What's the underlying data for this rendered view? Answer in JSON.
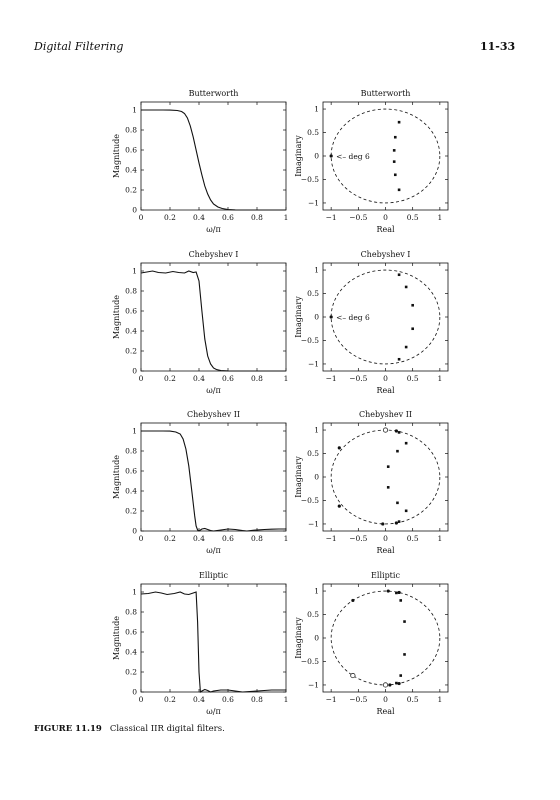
{
  "header": {
    "running_head": "Digital Filtering",
    "page_number": "11-33"
  },
  "caption": {
    "label": "FIGURE 11.19",
    "text": "Classical IIR digital filters."
  },
  "chart_data": [
    {
      "type": "line",
      "title": "Butterworth",
      "xlabel": "ω/π",
      "ylabel": "Magnitude",
      "xlim": [
        0,
        1
      ],
      "ylim": [
        0,
        1.08
      ],
      "xticks": [
        "0",
        "0.2",
        "0.4",
        "0.6",
        "0.8",
        "1"
      ],
      "yticks": [
        "0",
        "0.2",
        "0.4",
        "0.6",
        "0.8",
        "1"
      ],
      "x": [
        0,
        0.05,
        0.1,
        0.15,
        0.2,
        0.25,
        0.28,
        0.3,
        0.32,
        0.34,
        0.36,
        0.38,
        0.4,
        0.42,
        0.44,
        0.46,
        0.48,
        0.5,
        0.53,
        0.56,
        0.6,
        0.65,
        0.7,
        0.8,
        0.9,
        1
      ],
      "y": [
        1,
        1,
        1,
        1,
        0.999,
        0.995,
        0.985,
        0.965,
        0.92,
        0.84,
        0.73,
        0.6,
        0.47,
        0.35,
        0.24,
        0.16,
        0.1,
        0.06,
        0.03,
        0.015,
        0.005,
        0.001,
        0,
        0,
        0,
        0
      ]
    },
    {
      "type": "scatter",
      "title": "Butterworth",
      "xlabel": "Real",
      "ylabel": "Imaginary",
      "xlim": [
        -1.15,
        1.15
      ],
      "ylim": [
        -1.15,
        1.15
      ],
      "xticks": [
        "−1",
        "−0.5",
        "0",
        "0.5",
        "1"
      ],
      "yticks": [
        "−1",
        "−0.5",
        "0",
        "0.5",
        "1"
      ],
      "unit_circle": true,
      "poles": [
        [
          0.25,
          0.72
        ],
        [
          0.18,
          0.4
        ],
        [
          0.16,
          0.12
        ],
        [
          0.16,
          -0.12
        ],
        [
          0.18,
          -0.4
        ],
        [
          0.25,
          -0.72
        ]
      ],
      "zeros": [
        [
          -1,
          0
        ]
      ],
      "annotation": {
        "text": "<– deg 6",
        "x": -1,
        "y": 0
      }
    },
    {
      "type": "line",
      "title": "Chebyshev I",
      "xlabel": "ω/π",
      "ylabel": "Magnitude",
      "xlim": [
        0,
        1
      ],
      "ylim": [
        0,
        1.08
      ],
      "xticks": [
        "0",
        "0.2",
        "0.4",
        "0.6",
        "0.8",
        "1"
      ],
      "yticks": [
        "0",
        "0.2",
        "0.4",
        "0.6",
        "0.8",
        "1"
      ],
      "x": [
        0,
        0.04,
        0.08,
        0.12,
        0.17,
        0.22,
        0.26,
        0.3,
        0.33,
        0.36,
        0.38,
        0.4,
        0.42,
        0.44,
        0.46,
        0.48,
        0.5,
        0.52,
        0.55,
        0.6,
        0.7,
        0.8,
        0.9,
        1
      ],
      "y": [
        0.98,
        0.99,
        1,
        0.985,
        0.98,
        0.995,
        0.985,
        0.98,
        1,
        0.985,
        0.99,
        0.9,
        0.6,
        0.32,
        0.15,
        0.07,
        0.03,
        0.015,
        0.005,
        0.001,
        0,
        0,
        0,
        0
      ]
    },
    {
      "type": "scatter",
      "title": "Chebyshev I",
      "xlabel": "Real",
      "ylabel": "Imaginary",
      "xlim": [
        -1.15,
        1.15
      ],
      "ylim": [
        -1.15,
        1.15
      ],
      "xticks": [
        "−1",
        "−0.5",
        "0",
        "0.5",
        "1"
      ],
      "yticks": [
        "−1",
        "−0.5",
        "0",
        "0.5",
        "1"
      ],
      "unit_circle": true,
      "poles": [
        [
          0.25,
          0.9
        ],
        [
          0.38,
          0.64
        ],
        [
          0.5,
          0.25
        ],
        [
          0.5,
          -0.25
        ],
        [
          0.38,
          -0.64
        ],
        [
          0.25,
          -0.9
        ]
      ],
      "zeros": [
        [
          -1,
          0
        ]
      ],
      "annotation": {
        "text": "<– deg 6",
        "x": -1,
        "y": 0
      }
    },
    {
      "type": "line",
      "title": "Chebyshev II",
      "xlabel": "ω/π",
      "ylabel": "Magnitude",
      "xlim": [
        0,
        1
      ],
      "ylim": [
        0,
        1.08
      ],
      "xticks": [
        "0",
        "0.2",
        "0.4",
        "0.6",
        "0.8",
        "1"
      ],
      "yticks": [
        "0",
        "0.2",
        "0.4",
        "0.6",
        "0.8",
        "1"
      ],
      "x": [
        0,
        0.05,
        0.1,
        0.15,
        0.2,
        0.24,
        0.27,
        0.29,
        0.31,
        0.33,
        0.35,
        0.37,
        0.38,
        0.39,
        0.4,
        0.42,
        0.44,
        0.46,
        0.48,
        0.5,
        0.55,
        0.6,
        0.65,
        0.7,
        0.73,
        0.78,
        0.85,
        0.9,
        0.95,
        1
      ],
      "y": [
        1,
        1,
        1,
        1,
        0.999,
        0.99,
        0.97,
        0.92,
        0.82,
        0.65,
        0.4,
        0.15,
        0.05,
        0.01,
        0,
        0.02,
        0.025,
        0.015,
        0.005,
        0,
        0.01,
        0.02,
        0.015,
        0.005,
        0,
        0.008,
        0.015,
        0.018,
        0.02,
        0.02
      ]
    },
    {
      "type": "scatter",
      "title": "Chebyshev II",
      "xlabel": "Real",
      "ylabel": "Imaginary",
      "xlim": [
        -1.15,
        1.15
      ],
      "ylim": [
        -1.15,
        1.15
      ],
      "xticks": [
        "−1",
        "−0.5",
        "0",
        "0.5",
        "1"
      ],
      "yticks": [
        "−1",
        "−0.5",
        "0",
        "0.5",
        "1"
      ],
      "unit_circle": true,
      "poles": [
        [
          0.25,
          0.95
        ],
        [
          0.38,
          0.72
        ],
        [
          0.22,
          0.55
        ],
        [
          0.05,
          0.22
        ],
        [
          0.05,
          -0.22
        ],
        [
          0.22,
          -0.55
        ],
        [
          0.38,
          -0.72
        ],
        [
          0.25,
          -0.95
        ]
      ],
      "zeros": [
        [
          -0.85,
          0.62
        ],
        [
          -0.85,
          -0.62
        ],
        [
          0.2,
          0.98
        ],
        [
          -0.05,
          -1.0
        ],
        [
          0.2,
          -0.98
        ]
      ],
      "open_markers": [
        [
          0,
          1.0
        ]
      ]
    },
    {
      "type": "line",
      "title": "Elliptic",
      "xlabel": "ω/π",
      "ylabel": "Magnitude",
      "xlim": [
        0,
        1
      ],
      "ylim": [
        0,
        1.08
      ],
      "xticks": [
        "0",
        "0.2",
        "0.4",
        "0.6",
        "0.8",
        "1"
      ],
      "yticks": [
        "0",
        "0.2",
        "0.4",
        "0.6",
        "0.8",
        "1"
      ],
      "x": [
        0,
        0.05,
        0.1,
        0.14,
        0.18,
        0.23,
        0.27,
        0.3,
        0.33,
        0.36,
        0.38,
        0.39,
        0.4,
        0.41,
        0.42,
        0.44,
        0.46,
        0.48,
        0.5,
        0.55,
        0.6,
        0.65,
        0.7,
        0.8,
        0.9,
        1
      ],
      "y": [
        0.98,
        0.985,
        1,
        0.99,
        0.975,
        0.985,
        1,
        0.98,
        0.975,
        0.99,
        1,
        0.7,
        0.2,
        0,
        0.01,
        0.025,
        0.015,
        0,
        0.01,
        0.02,
        0.02,
        0.01,
        0,
        0.01,
        0.02,
        0.02
      ]
    },
    {
      "type": "scatter",
      "title": "Elliptic",
      "xlabel": "Real",
      "ylabel": "Imaginary",
      "xlim": [
        -1.15,
        1.15
      ],
      "ylim": [
        -1.15,
        1.15
      ],
      "xticks": [
        "−1",
        "−0.5",
        "0",
        "0.5",
        "1"
      ],
      "yticks": [
        "−1",
        "−0.5",
        "0",
        "0.5",
        "1"
      ],
      "unit_circle": true,
      "poles": [
        [
          0.2,
          0.96
        ],
        [
          0.28,
          0.8
        ],
        [
          0.35,
          0.35
        ],
        [
          0.35,
          -0.35
        ],
        [
          0.28,
          -0.8
        ],
        [
          0.2,
          -0.96
        ]
      ],
      "zeros": [
        [
          -0.6,
          0.8
        ],
        [
          0.05,
          1.0
        ],
        [
          0.25,
          0.97
        ],
        [
          0.25,
          -0.97
        ],
        [
          0.08,
          -1.0
        ]
      ],
      "open_markers": [
        [
          -0.6,
          -0.8
        ],
        [
          0.0,
          -1.0
        ]
      ]
    }
  ]
}
